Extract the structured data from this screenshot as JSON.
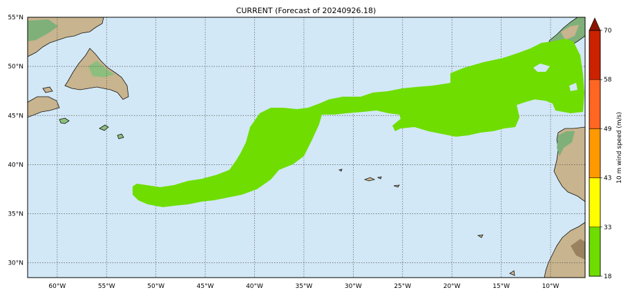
{
  "title": "CURRENT (Forecast of 20240926.18)",
  "map": {
    "lon_range": [
      -63,
      -6.5
    ],
    "lat_range": [
      28.5,
      55
    ],
    "grid": true,
    "ocean_color": "#d2e8f6",
    "wind_swath_color": "#6fdd00",
    "lon_ticks": [
      {
        "label": "60°W",
        "value": -60
      },
      {
        "label": "55°W",
        "value": -55
      },
      {
        "label": "50°W",
        "value": -50
      },
      {
        "label": "45°W",
        "value": -45
      },
      {
        "label": "40°W",
        "value": -40
      },
      {
        "label": "35°W",
        "value": -35
      },
      {
        "label": "30°W",
        "value": -30
      },
      {
        "label": "25°W",
        "value": -25
      },
      {
        "label": "20°W",
        "value": -20
      },
      {
        "label": "15°W",
        "value": -15
      },
      {
        "label": "10°W",
        "value": -10
      }
    ],
    "lat_ticks": [
      {
        "label": "55°N",
        "value": 55
      },
      {
        "label": "50°N",
        "value": 50
      },
      {
        "label": "45°N",
        "value": 45
      },
      {
        "label": "40°N",
        "value": 40
      },
      {
        "label": "35°N",
        "value": 35
      },
      {
        "label": "30°N",
        "value": 30
      }
    ]
  },
  "colorbar": {
    "label": "10 m wind speed (m/s)",
    "extend": "max",
    "ticks": [
      "70",
      "58",
      "49",
      "43",
      "33",
      "18"
    ],
    "bins": [
      {
        "from": 18,
        "to": 33,
        "color": "#6fdd00"
      },
      {
        "from": 33,
        "to": 43,
        "color": "#ffff00"
      },
      {
        "from": 43,
        "to": 49,
        "color": "#ff9900"
      },
      {
        "from": 49,
        "to": 58,
        "color": "#ff6622"
      },
      {
        "from": 58,
        "to": 70,
        "color": "#cc2200"
      }
    ],
    "extend_color": "#8b1500"
  }
}
